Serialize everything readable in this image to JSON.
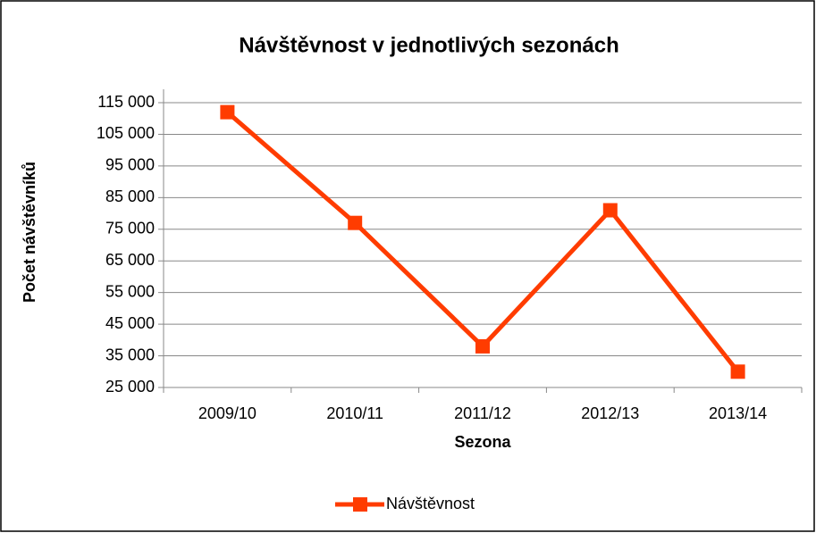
{
  "chart_data": {
    "type": "line",
    "title": "Návštěvnost v jednotlivých sezonách",
    "xlabel": "Sezona",
    "ylabel": "Počet návštěvníků",
    "categories": [
      "2009/10",
      "2010/11",
      "2011/12",
      "2012/13",
      "2013/14"
    ],
    "series": [
      {
        "name": "Návštěvnost",
        "color": "#ff3c00",
        "values": [
          112000,
          77000,
          38000,
          81000,
          30000
        ]
      }
    ],
    "ylim": [
      25000,
      115000
    ],
    "yticks": [
      {
        "value": 25000,
        "label": "25 000"
      },
      {
        "value": 35000,
        "label": "35 000"
      },
      {
        "value": 45000,
        "label": "45 000"
      },
      {
        "value": 55000,
        "label": "55 000"
      },
      {
        "value": 65000,
        "label": "65 000"
      },
      {
        "value": 75000,
        "label": "75 000"
      },
      {
        "value": 85000,
        "label": "85 000"
      },
      {
        "value": 95000,
        "label": "95 000"
      },
      {
        "value": 105000,
        "label": "105 000"
      },
      {
        "value": 115000,
        "label": "115 000"
      }
    ],
    "grid": true,
    "legend": "bottom"
  }
}
